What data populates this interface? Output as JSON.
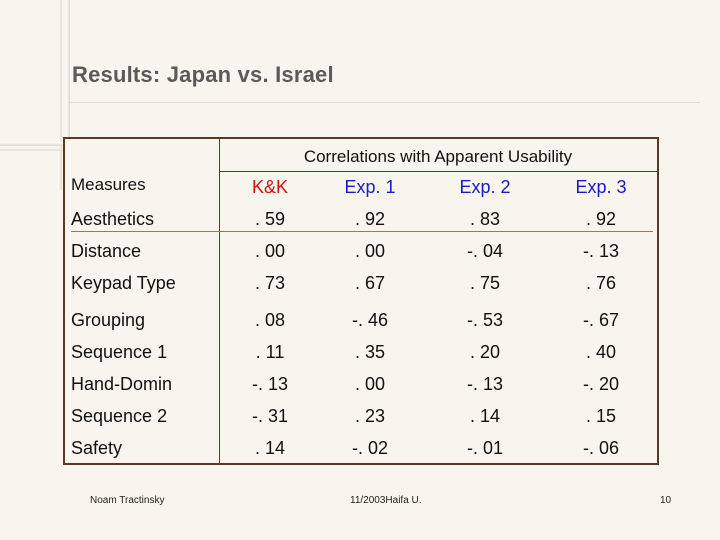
{
  "slide": {
    "title": "Results: Japan vs. Israel",
    "footer_left": "Noam Tractinsky",
    "footer_center": "11/2003Haifa U.",
    "page_number": "10"
  },
  "table": {
    "group_header": "Correlations with Apparent Usability",
    "row_header": "Measures",
    "columns": [
      "K&K",
      "Exp. 1",
      "Exp. 2",
      "Exp. 3"
    ],
    "column_colors": [
      "#d11414",
      "#1a1ac8",
      "#1a1ac8",
      "#1a1ac8"
    ],
    "rows": [
      {
        "measure": "Aesthetics",
        "values": [
          ". 59",
          ". 92",
          ". 83",
          ". 92"
        ]
      },
      {
        "measure": "Distance",
        "values": [
          ". 00",
          ". 00",
          "-. 04",
          "-. 13"
        ]
      },
      {
        "measure": "Keypad Type",
        "values": [
          ". 73",
          ". 67",
          ". 75",
          ". 76"
        ]
      },
      {
        "measure": "Grouping",
        "values": [
          ". 08",
          "-. 46",
          "-. 53",
          "-. 67"
        ]
      },
      {
        "measure": "Sequence 1",
        "values": [
          ". 11",
          ". 35",
          ". 20",
          ". 40"
        ]
      },
      {
        "measure": "Hand-Domin",
        "values": [
          "-. 13",
          ". 00",
          "-. 13",
          "-. 20"
        ]
      },
      {
        "measure": "Sequence 2",
        "values": [
          "-. 31",
          ". 23",
          ". 14",
          ". 15"
        ]
      },
      {
        "measure": "Safety",
        "values": [
          ". 14",
          "-. 02",
          "-. 01",
          "-. 06"
        ]
      }
    ]
  }
}
